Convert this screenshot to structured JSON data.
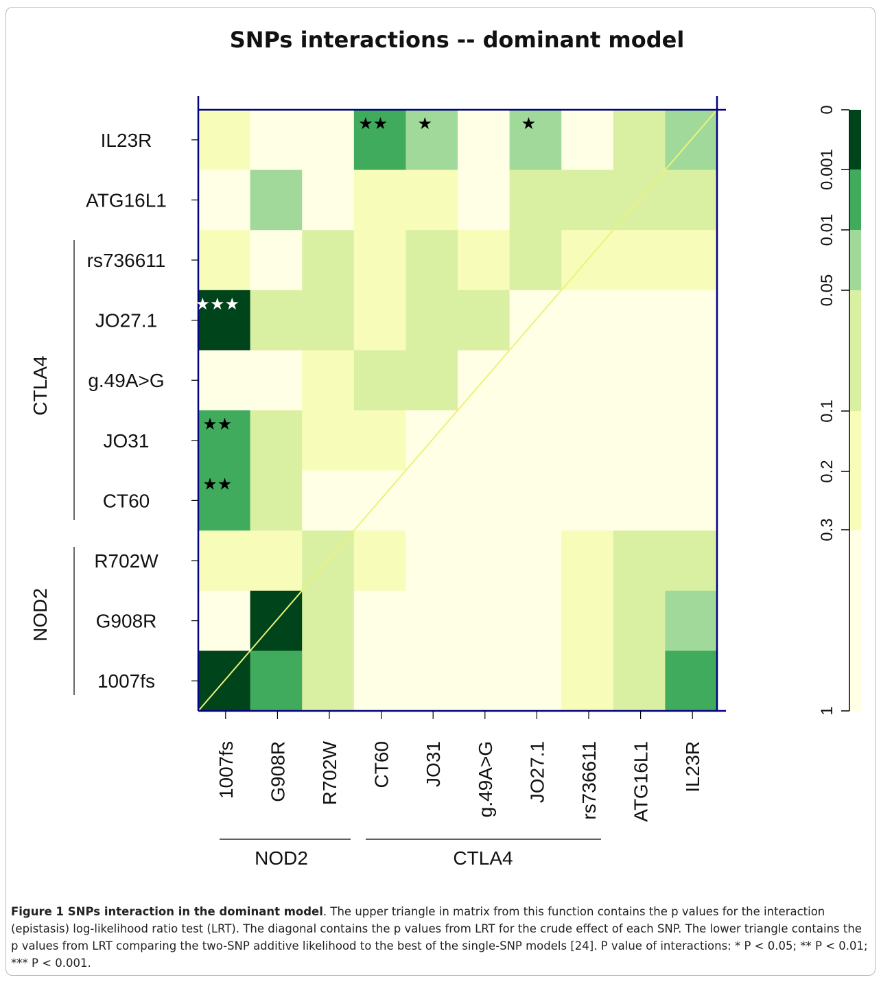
{
  "chart_data": {
    "type": "heatmap",
    "title": "SNPs interactions -- dominant model",
    "x_labels": [
      "1007fs",
      "G908R",
      "R702W",
      "CT60",
      "JO31",
      "g.49A>G",
      "JO27.1",
      "rs736611",
      "ATG16L1",
      "IL23R"
    ],
    "y_labels_top_to_bottom": [
      "IL23R",
      "ATG16L1",
      "rs736611",
      "JO27.1",
      "g.49A>G",
      "JO31",
      "CT60",
      "R702W",
      "G908R",
      "1007fs"
    ],
    "groups": [
      {
        "name": "NOD2",
        "members": [
          "1007fs",
          "G908R",
          "R702W"
        ]
      },
      {
        "name": "CTLA4",
        "members": [
          "CT60",
          "JO31",
          "g.49A>G",
          "JO27.1",
          "rs736611"
        ]
      }
    ],
    "color_levels": [
      {
        "range": [
          0,
          0.001
        ],
        "color": "#00441b"
      },
      {
        "range": [
          0.001,
          0.01
        ],
        "color": "#41ab5d"
      },
      {
        "range": [
          0.01,
          0.05
        ],
        "color": "#a1d99b"
      },
      {
        "range": [
          0.05,
          0.1
        ],
        "color": "#d9f0a3"
      },
      {
        "range": [
          0.1,
          0.3
        ],
        "color": "#f7fcb9"
      },
      {
        "range": [
          0.3,
          1
        ],
        "color": "#ffffe5"
      }
    ],
    "color_bar_ticks": [
      "0",
      "0.001",
      "0.01",
      "0.05",
      "0.1",
      "0.2",
      "0.3",
      "1"
    ],
    "matrix_levels_top_to_bottom": [
      [
        4,
        5,
        5,
        1,
        2,
        5,
        2,
        5,
        3,
        2
      ],
      [
        5,
        2,
        5,
        4,
        4,
        5,
        3,
        3,
        3,
        3
      ],
      [
        4,
        5,
        3,
        4,
        3,
        4,
        3,
        4,
        4,
        4
      ],
      [
        0,
        3,
        3,
        4,
        3,
        3,
        5,
        5,
        5,
        5
      ],
      [
        5,
        5,
        4,
        3,
        3,
        5,
        5,
        5,
        5,
        5
      ],
      [
        1,
        3,
        4,
        4,
        5,
        5,
        5,
        5,
        5,
        5
      ],
      [
        1,
        3,
        5,
        5,
        5,
        5,
        5,
        5,
        5,
        5
      ],
      [
        4,
        4,
        3,
        4,
        5,
        5,
        5,
        4,
        3,
        3
      ],
      [
        5,
        0,
        3,
        5,
        5,
        5,
        5,
        4,
        3,
        2
      ],
      [
        0,
        1,
        3,
        5,
        5,
        5,
        5,
        4,
        3,
        1
      ]
    ],
    "stars": [
      {
        "row": "IL23R",
        "col": "CT60",
        "label": "★★",
        "color": "#000000"
      },
      {
        "row": "IL23R",
        "col": "JO31",
        "label": "★",
        "color": "#000000"
      },
      {
        "row": "IL23R",
        "col": "JO27.1",
        "label": "★",
        "color": "#000000"
      },
      {
        "row": "JO27.1",
        "col": "1007fs",
        "label": "★★★",
        "color": "#ffffff"
      },
      {
        "row": "JO31",
        "col": "1007fs",
        "label": "★★",
        "color": "#000000"
      },
      {
        "row": "CT60",
        "col": "1007fs",
        "label": "★★",
        "color": "#000000"
      }
    ]
  },
  "caption": {
    "bold": "Figure 1 SNPs interaction in the dominant model",
    "text": ". The upper triangle in matrix from this function contains the p values for the interaction (epistasis) log-likelihood ratio test (LRT). The diagonal contains the p values from LRT for the crude effect of each SNP. The lower triangle contains the p values from LRT comparing the two-SNP additive likelihood to the best of the single-SNP models [24]. P value of interactions: * P < 0.05; ** P < 0.01; *** P < 0.001."
  }
}
